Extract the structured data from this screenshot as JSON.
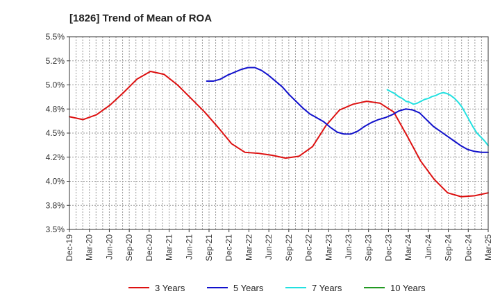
{
  "chart_data": {
    "type": "line",
    "title": "[1826]  Trend of Mean of ROA",
    "xlabel": "",
    "ylabel": "",
    "ylim": [
      3.5,
      5.5
    ],
    "y_ticks": [
      "3.5%",
      "3.8%",
      "4.0%",
      "4.2%",
      "4.5%",
      "4.8%",
      "5.0%",
      "5.2%",
      "5.5%"
    ],
    "y_tick_values": [
      3.5,
      3.75,
      4.0,
      4.25,
      4.5,
      4.75,
      5.0,
      5.25,
      5.5
    ],
    "x_labels": [
      "Dec-19",
      "Mar-20",
      "Jun-20",
      "Sep-20",
      "Dec-20",
      "Mar-21",
      "Jun-21",
      "Sep-21",
      "Dec-21",
      "Mar-22",
      "Jun-22",
      "Sep-22",
      "Dec-22",
      "Mar-23",
      "Jun-23",
      "Sep-23",
      "Dec-23",
      "Mar-24",
      "Jun-24",
      "Sep-24",
      "Dec-24",
      "Mar-25"
    ],
    "grid": true,
    "series": [
      {
        "name": "3 Years",
        "color": "#dd1111",
        "values": [
          4.67,
          4.64,
          4.69,
          4.79,
          4.92,
          5.06,
          5.14,
          5.11,
          5.0,
          4.86,
          4.72,
          4.56,
          4.39,
          4.3,
          4.29,
          4.27,
          4.24,
          4.26,
          4.36,
          4.58,
          4.74,
          4.8,
          4.83,
          4.81,
          4.72,
          4.47,
          4.21,
          4.02,
          3.88,
          3.84,
          3.85,
          3.88
        ]
      },
      {
        "name": "5 Years",
        "color": "#1111cc",
        "values": [
          null,
          null,
          null,
          null,
          null,
          null,
          null,
          null,
          null,
          null,
          null,
          null,
          null,
          null,
          null,
          null,
          null,
          null,
          null,
          null,
          5.04,
          5.04,
          5.06,
          5.1,
          5.13,
          5.16,
          5.18,
          5.18,
          5.15,
          5.1,
          5.04,
          4.98,
          4.9,
          4.83,
          4.76,
          4.7,
          4.66,
          4.62,
          4.56,
          4.51,
          4.49,
          4.49,
          4.52,
          4.57,
          4.61,
          4.64,
          4.66,
          4.69,
          4.73,
          4.75,
          4.74,
          4.71,
          4.64,
          4.57,
          4.52,
          4.47,
          4.42,
          4.37,
          4.33,
          4.31,
          4.3,
          4.3
        ]
      },
      {
        "name": "7 Years",
        "color": "#22e0e0",
        "values": [
          null,
          null,
          null,
          null,
          null,
          null,
          null,
          null,
          null,
          null,
          null,
          null,
          null,
          null,
          null,
          null,
          null,
          null,
          null,
          null,
          null,
          null,
          null,
          null,
          null,
          null,
          null,
          null,
          null,
          null,
          null,
          null,
          null,
          null,
          null,
          null,
          null,
          null,
          null,
          null,
          null,
          null,
          null,
          null,
          null,
          null,
          null,
          null,
          null,
          null,
          null,
          null,
          null,
          null,
          null,
          null,
          null,
          null,
          null,
          null,
          null,
          null,
          null,
          null,
          null,
          null,
          null,
          null,
          null,
          null,
          null,
          null,
          null,
          null,
          null,
          null,
          null,
          null,
          null,
          null,
          null,
          null,
          null,
          null,
          null,
          4.95,
          4.93,
          4.91,
          4.88,
          4.86,
          4.83,
          4.82,
          4.8,
          4.81,
          4.83,
          4.85,
          4.86,
          4.88,
          4.89,
          4.91,
          4.92,
          4.91,
          4.89,
          4.86,
          4.82,
          4.77,
          4.7,
          4.63,
          4.56,
          4.5,
          4.46,
          4.42,
          4.37
        ]
      },
      {
        "name": "10 Years",
        "color": "#229922",
        "values": []
      }
    ]
  }
}
